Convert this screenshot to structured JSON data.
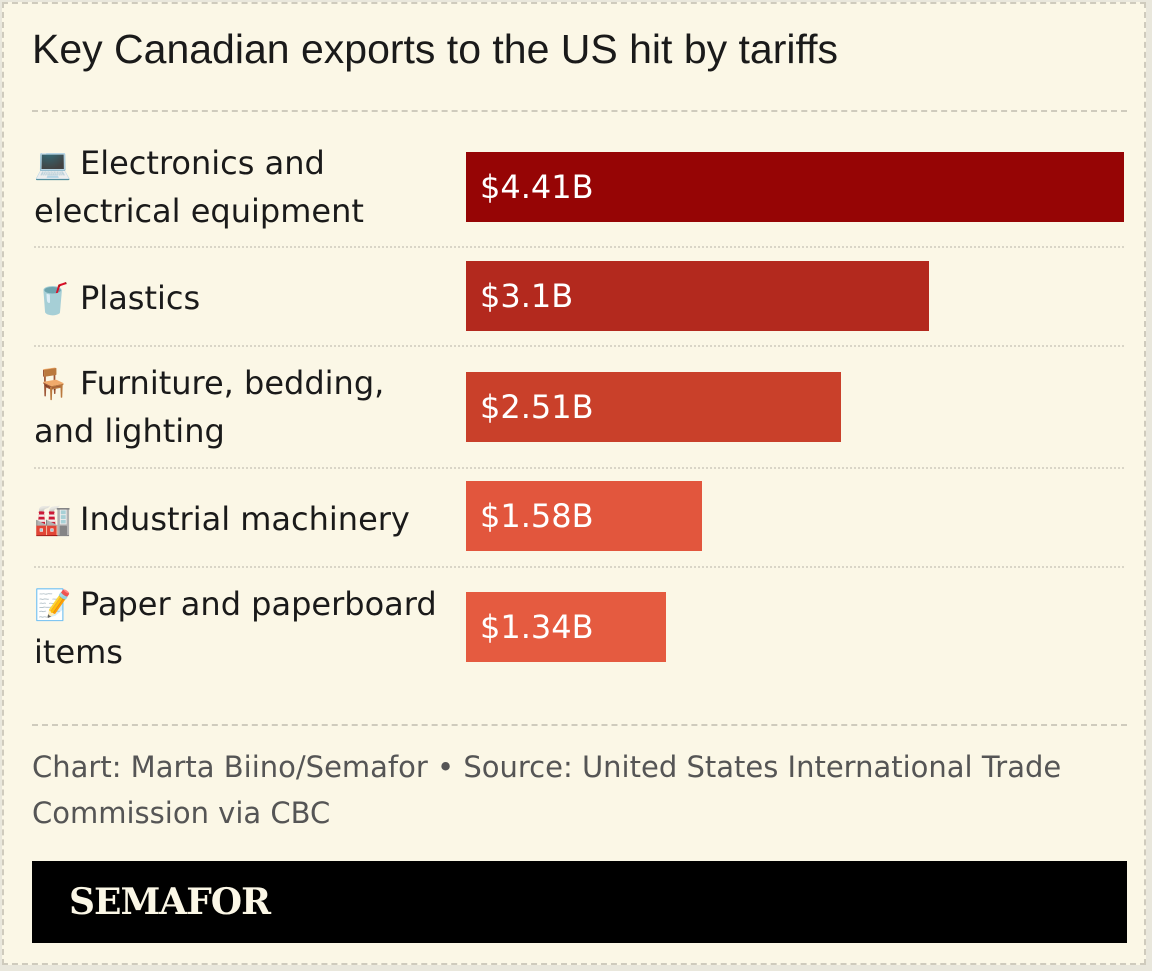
{
  "title": "Key Canadian exports to the US hit by tariffs",
  "chart_data": {
    "type": "bar",
    "orientation": "horizontal",
    "title": "Key Canadian exports to the US hit by tariffs",
    "unit": "$B",
    "categories": [
      "Electronics and electrical equipment",
      "Plastics",
      "Furniture, bedding, and lighting",
      "Industrial machinery",
      "Paper and paperboard items"
    ],
    "values": [
      4.41,
      3.1,
      2.51,
      1.58,
      1.34
    ],
    "value_labels": [
      "$4.41B",
      "$3.1B",
      "$2.51B",
      "$1.58B",
      "$1.34B"
    ],
    "icons": [
      "laptop-icon",
      "cup-icon",
      "chair-icon",
      "factory-icon",
      "memo-icon"
    ],
    "emoji": [
      "💻",
      "🥤",
      "🪑",
      "🏭",
      "📝"
    ],
    "colors": [
      "#960505",
      "#b3291e",
      "#c9402a",
      "#e2563d",
      "#e55b40"
    ],
    "xlim": [
      0,
      4.41
    ],
    "grid": false,
    "legend": "none"
  },
  "footer": {
    "credit": "Chart: Marta Biino/Semafor • Source: United States International Trade Commission via CBC"
  },
  "brand": "SEMAFOR"
}
